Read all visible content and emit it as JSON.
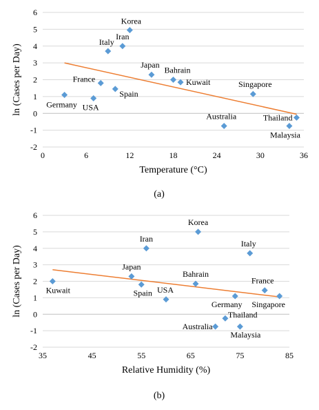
{
  "chart_data": [
    {
      "type": "scatter",
      "caption": "(a)",
      "xlabel": "Temperature (°C)",
      "ylabel": "ln (Cases per Day)",
      "xlim": [
        0,
        36
      ],
      "ylim": [
        -2,
        6
      ],
      "xticks": [
        0,
        6,
        12,
        18,
        24,
        30,
        36
      ],
      "yticks": [
        -2,
        -1,
        0,
        1,
        2,
        3,
        4,
        5,
        6
      ],
      "grid": "horizontal",
      "marker_color": "#5b9bd5",
      "trendline_color": "#ed7d31",
      "trendline": [
        [
          3,
          3.0
        ],
        [
          35,
          -0.05
        ]
      ],
      "points": [
        {
          "label": "Korea",
          "x": 12.0,
          "y": 4.95
        },
        {
          "label": "Iran",
          "x": 11.0,
          "y": 4.0
        },
        {
          "label": "Italy",
          "x": 9.0,
          "y": 3.7
        },
        {
          "label": "Japan",
          "x": 15.0,
          "y": 2.3
        },
        {
          "label": "Bahrain",
          "x": 18.0,
          "y": 2.0
        },
        {
          "label": "Kuwait",
          "x": 19.0,
          "y": 1.85
        },
        {
          "label": "France",
          "x": 8.0,
          "y": 1.8
        },
        {
          "label": "Spain",
          "x": 10.0,
          "y": 1.45
        },
        {
          "label": "Germany",
          "x": 3.0,
          "y": 1.1
        },
        {
          "label": "USA",
          "x": 7.0,
          "y": 0.9
        },
        {
          "label": "Singapore",
          "x": 29.0,
          "y": 1.15
        },
        {
          "label": "Australia",
          "x": 25.0,
          "y": -0.75
        },
        {
          "label": "Thailand",
          "x": 35.0,
          "y": -0.25
        },
        {
          "label": "Malaysia",
          "x": 34.0,
          "y": -0.75
        }
      ]
    },
    {
      "type": "scatter",
      "caption": "(b)",
      "xlabel": "Relative Humidity (%)",
      "ylabel": "ln (Cases per Day)",
      "xlim": [
        35,
        85
      ],
      "ylim": [
        -2,
        6
      ],
      "xticks": [
        35,
        45,
        55,
        65,
        75,
        85
      ],
      "yticks": [
        -2,
        -1,
        0,
        1,
        2,
        3,
        4,
        5,
        6
      ],
      "grid": "horizontal",
      "marker_color": "#5b9bd5",
      "trendline_color": "#ed7d31",
      "trendline": [
        [
          37,
          2.7
        ],
        [
          83,
          1.05
        ]
      ],
      "points": [
        {
          "label": "Korea",
          "x": 66.5,
          "y": 5.0
        },
        {
          "label": "Iran",
          "x": 56.0,
          "y": 4.0
        },
        {
          "label": "Italy",
          "x": 77.0,
          "y": 3.7
        },
        {
          "label": "Japan",
          "x": 53.0,
          "y": 2.3
        },
        {
          "label": "Bahrain",
          "x": 66.0,
          "y": 1.85
        },
        {
          "label": "Spain",
          "x": 55.0,
          "y": 1.8
        },
        {
          "label": "Kuwait",
          "x": 37.0,
          "y": 2.0
        },
        {
          "label": "USA",
          "x": 60.0,
          "y": 0.9
        },
        {
          "label": "France",
          "x": 80.0,
          "y": 1.45
        },
        {
          "label": "Germany",
          "x": 74.0,
          "y": 1.1
        },
        {
          "label": "Singapore",
          "x": 83.0,
          "y": 1.1
        },
        {
          "label": "Thailand",
          "x": 72.0,
          "y": -0.25
        },
        {
          "label": "Australia",
          "x": 70.0,
          "y": -0.75
        },
        {
          "label": "Malaysia",
          "x": 75.0,
          "y": -0.75
        }
      ]
    }
  ]
}
